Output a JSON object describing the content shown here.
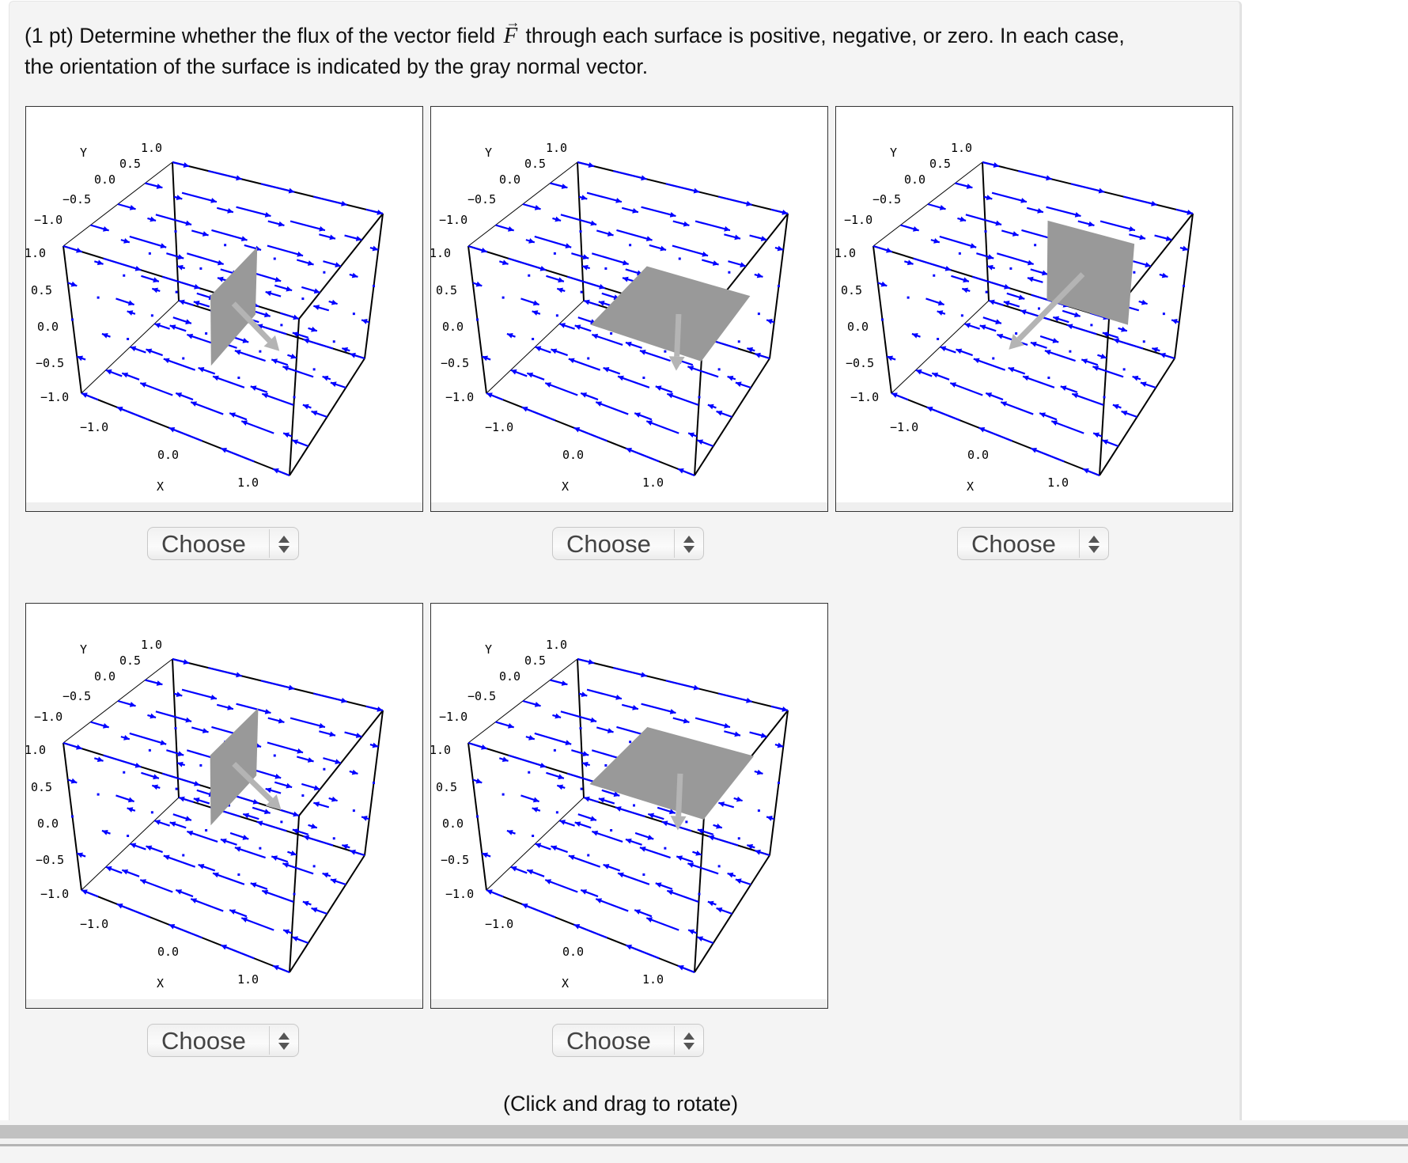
{
  "prompt": {
    "line1_before": "(1 pt) Determine whether the flux of the vector field",
    "vector_symbol": "F",
    "vector_arrow": "→",
    "line1_after": "through each surface is positive, negative, or zero. In each case,",
    "line2": "the orientation of the surface is indicated by the gray normal vector."
  },
  "axis_labels": {
    "x": "X",
    "y": "Y",
    "y_ticks": [
      "1.0",
      "0.5",
      "0.0",
      "-0.5",
      "-1.0"
    ],
    "z_ticks": [
      "1.0",
      "0.5",
      "0.0",
      "-0.5",
      "-1.0"
    ],
    "x_ticks": [
      "-1.0",
      "0.0",
      "1.0"
    ]
  },
  "colors": {
    "field_arrow": "#0000ff",
    "surface": "#999999",
    "normal_vector": "#b4b4b4",
    "box_edge": "#000000"
  },
  "plots": [
    {
      "id": 1,
      "surface": "vertical-plane",
      "normal": "right-forward",
      "select_label": "Choose"
    },
    {
      "id": 2,
      "surface": "horizontal-plane",
      "normal": "down",
      "select_label": "Choose"
    },
    {
      "id": 3,
      "surface": "vertical-plane-facing",
      "normal": "toward-viewer",
      "select_label": "Choose"
    },
    {
      "id": 4,
      "surface": "vertical-plane-upper",
      "normal": "right-forward",
      "select_label": "Choose"
    },
    {
      "id": 5,
      "surface": "horizontal-plane-upper",
      "normal": "down",
      "select_label": "Choose"
    }
  ],
  "caption": "(Click and drag to rotate)"
}
